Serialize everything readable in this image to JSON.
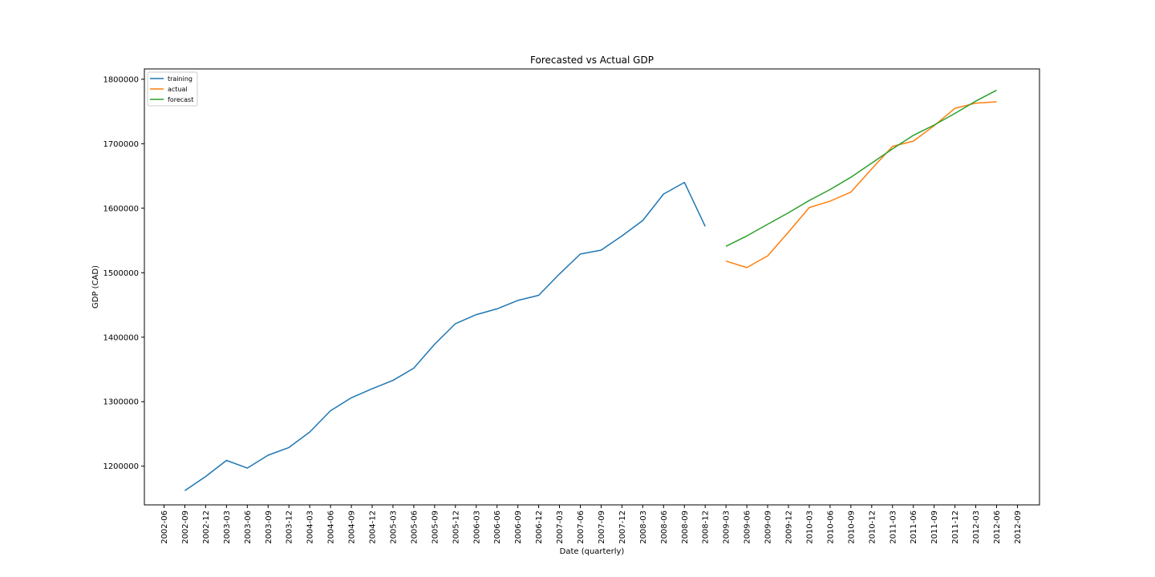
{
  "chart_data": {
    "type": "line",
    "title": "Forecasted vs Actual GDP",
    "xlabel": "Date (quarterly)",
    "ylabel": "GDP (CAD)",
    "x_ticks": [
      "2002-06",
      "2002-09",
      "2002-12",
      "2003-03",
      "2003-06",
      "2003-09",
      "2003-12",
      "2004-03",
      "2004-06",
      "2004-09",
      "2004-12",
      "2005-03",
      "2005-06",
      "2005-09",
      "2005-12",
      "2006-03",
      "2006-06",
      "2006-09",
      "2006-12",
      "2007-03",
      "2007-06",
      "2007-09",
      "2007-12",
      "2008-03",
      "2008-06",
      "2008-09",
      "2008-12",
      "2009-03",
      "2009-06",
      "2009-09",
      "2009-12",
      "2010-03",
      "2010-06",
      "2010-09",
      "2010-12",
      "2011-03",
      "2011-06",
      "2011-09",
      "2011-12",
      "2012-03",
      "2012-06",
      "2012-09"
    ],
    "y_ticks": [
      1200000,
      1300000,
      1400000,
      1500000,
      1600000,
      1700000,
      1800000
    ],
    "ylim": [
      1140000,
      1816000
    ],
    "grid": false,
    "legend_position": "top-left",
    "series": [
      {
        "name": "training",
        "color": "#1f77b4",
        "x": [
          "2002-09",
          "2002-12",
          "2003-03",
          "2003-06",
          "2003-09",
          "2003-12",
          "2004-03",
          "2004-06",
          "2004-09",
          "2004-12",
          "2005-03",
          "2005-06",
          "2005-09",
          "2005-12",
          "2006-03",
          "2006-06",
          "2006-09",
          "2006-12",
          "2007-03",
          "2007-06",
          "2007-09",
          "2007-12",
          "2008-03",
          "2008-06",
          "2008-09",
          "2008-12"
        ],
        "values": [
          1162000,
          1184000,
          1209000,
          1197000,
          1217000,
          1229000,
          1253000,
          1286000,
          1306000,
          1320000,
          1333000,
          1352000,
          1389000,
          1421000,
          1435000,
          1444000,
          1457000,
          1465000,
          1498000,
          1529000,
          1535000,
          1557000,
          1581000,
          1622000,
          1640000,
          1572000
        ]
      },
      {
        "name": "actual",
        "color": "#ff7f0e",
        "x": [
          "2009-03",
          "2009-06",
          "2009-09",
          "2009-12",
          "2010-03",
          "2010-06",
          "2010-09",
          "2010-12",
          "2011-03",
          "2011-06",
          "2011-09",
          "2011-12",
          "2012-03",
          "2012-06"
        ],
        "values": [
          1518000,
          1508000,
          1526000,
          1563000,
          1601000,
          1611000,
          1625000,
          1661000,
          1696000,
          1704000,
          1728000,
          1755000,
          1763000,
          1765000
        ]
      },
      {
        "name": "forecast",
        "color": "#2ca02c",
        "x": [
          "2009-03",
          "2009-06",
          "2009-09",
          "2009-12",
          "2010-03",
          "2010-06",
          "2010-09",
          "2010-12",
          "2011-03",
          "2011-06",
          "2011-09",
          "2011-12",
          "2012-03",
          "2012-06"
        ],
        "values": [
          1541000,
          1557000,
          1575000,
          1593000,
          1612000,
          1629000,
          1648000,
          1670000,
          1692000,
          1713000,
          1729000,
          1747000,
          1766000,
          1783000
        ]
      }
    ]
  }
}
